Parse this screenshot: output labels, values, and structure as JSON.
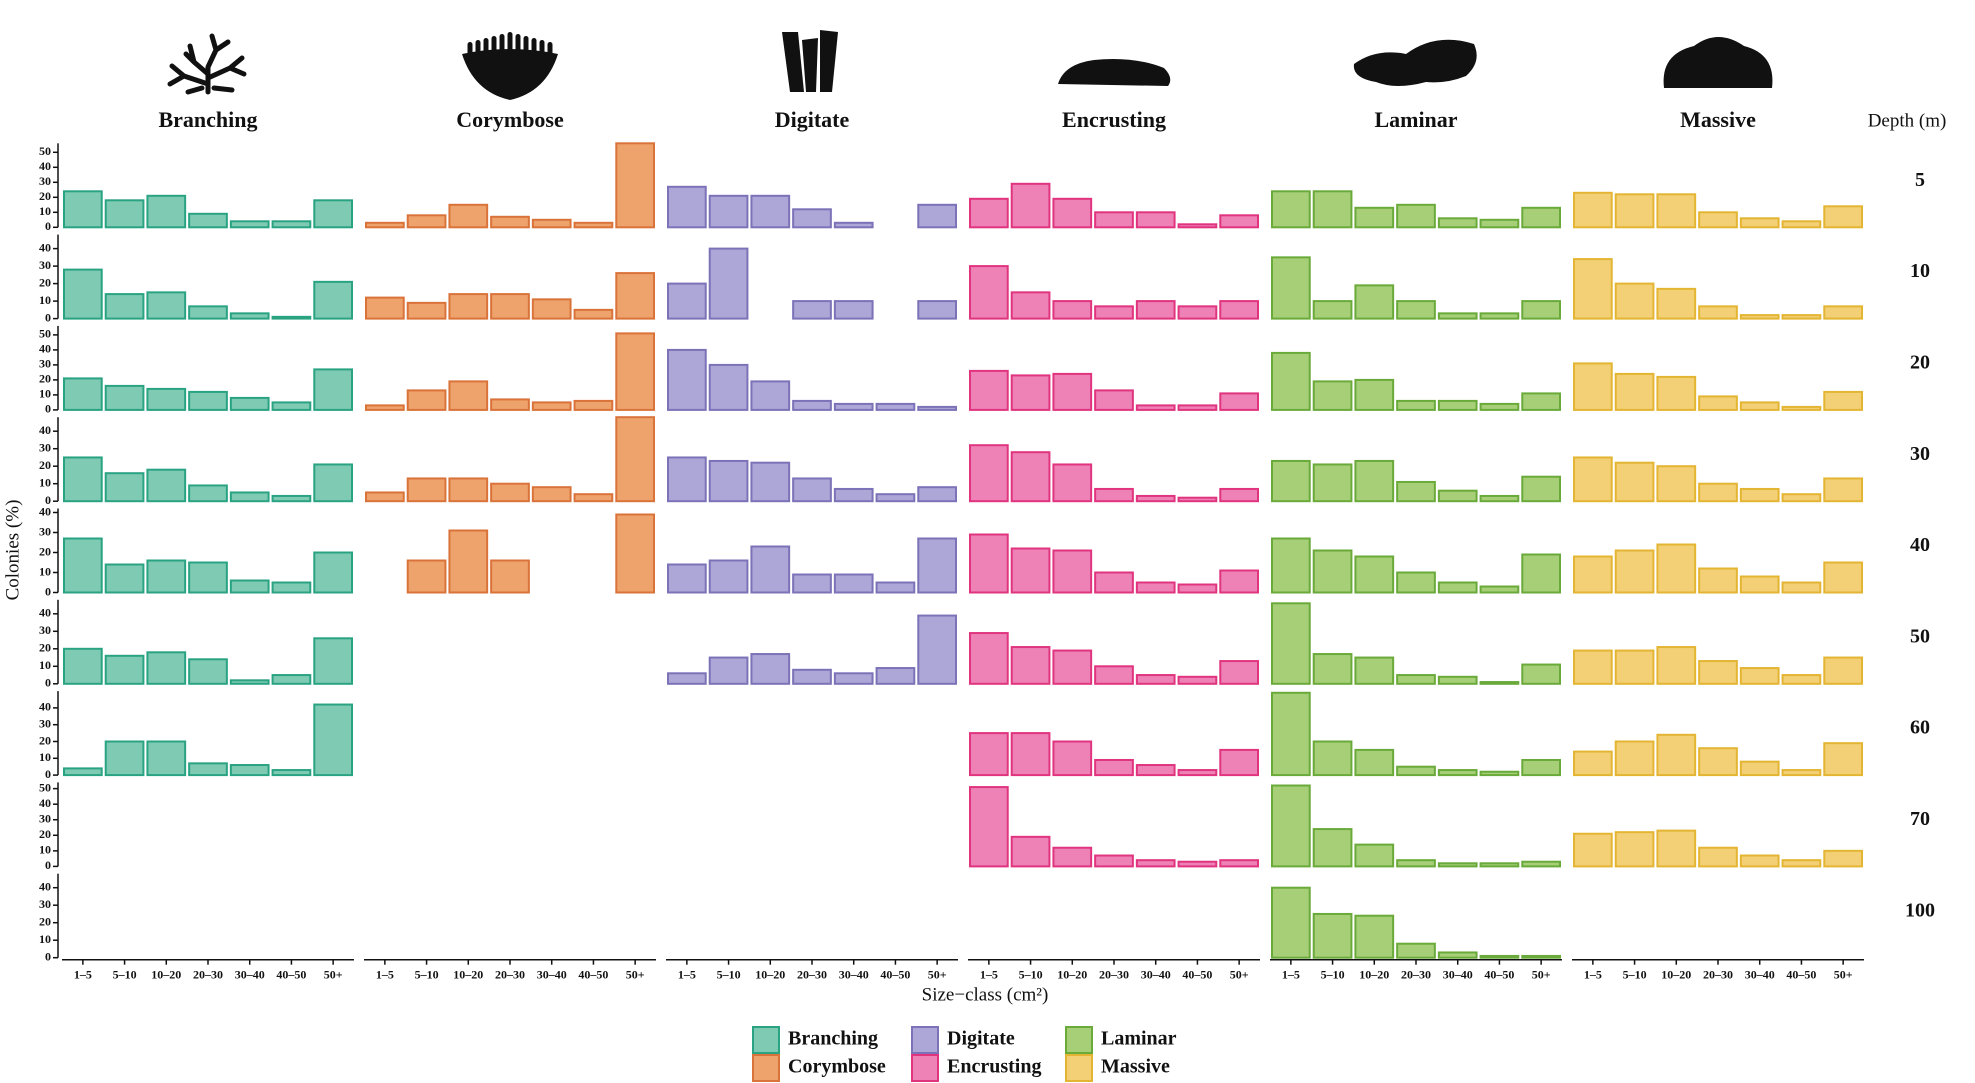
{
  "chart_data": {
    "type": "facet-bar",
    "x_label": "Size−class (cm²)",
    "y_label": "Colonies (%)",
    "row_title": "Depth (m)",
    "categories": [
      "1–5",
      "5–10",
      "10–20",
      "20–30",
      "30–40",
      "40–50",
      "50+"
    ],
    "columns": [
      {
        "name": "Branching",
        "color": "#7fcab3",
        "edgecolor": "#2aa383"
      },
      {
        "name": "Corymbose",
        "color": "#eea36d",
        "edgecolor": "#d9733a"
      },
      {
        "name": "Digitate",
        "color": "#aca7d6",
        "edgecolor": "#7b72b8"
      },
      {
        "name": "Encrusting",
        "color": "#ee82b6",
        "edgecolor": "#e0347f"
      },
      {
        "name": "Laminar",
        "color": "#a6cf78",
        "edgecolor": "#6aaa3a"
      },
      {
        "name": "Massive",
        "color": "#f3d076",
        "edgecolor": "#e3b533"
      }
    ],
    "rows": [
      {
        "depth": "5",
        "ylim": [
          0,
          56
        ],
        "yticks": [
          0,
          10,
          20,
          30,
          40,
          50
        ],
        "values": [
          [
            24,
            18,
            21,
            9,
            4,
            4,
            18
          ],
          [
            3,
            8,
            15,
            7,
            5,
            3,
            56
          ],
          [
            27,
            21,
            21,
            12,
            3,
            0,
            15
          ],
          [
            19,
            29,
            19,
            10,
            10,
            2,
            8
          ],
          [
            24,
            24,
            13,
            15,
            6,
            5,
            13
          ],
          [
            23,
            22,
            22,
            10,
            6,
            4,
            14
          ]
        ]
      },
      {
        "depth": "10",
        "ylim": [
          0,
          48
        ],
        "yticks": [
          0,
          10,
          20,
          30,
          40
        ],
        "values": [
          [
            28,
            14,
            15,
            7,
            3,
            1,
            21
          ],
          [
            12,
            9,
            14,
            14,
            11,
            5,
            26
          ],
          [
            20,
            40,
            0,
            10,
            10,
            0,
            10
          ],
          [
            30,
            15,
            10,
            7,
            10,
            7,
            10
          ],
          [
            35,
            10,
            19,
            10,
            3,
            3,
            10
          ],
          [
            34,
            20,
            17,
            7,
            2,
            2,
            7
          ]
        ]
      },
      {
        "depth": "20",
        "ylim": [
          0,
          56
        ],
        "yticks": [
          0,
          10,
          20,
          30,
          40,
          50
        ],
        "values": [
          [
            21,
            16,
            14,
            12,
            8,
            5,
            27
          ],
          [
            3,
            13,
            19,
            7,
            5,
            6,
            51
          ],
          [
            40,
            30,
            19,
            6,
            4,
            4,
            2
          ],
          [
            26,
            23,
            24,
            13,
            3,
            3,
            11
          ],
          [
            38,
            19,
            20,
            6,
            6,
            4,
            11
          ],
          [
            31,
            24,
            22,
            9,
            5,
            2,
            12
          ]
        ]
      },
      {
        "depth": "30",
        "ylim": [
          0,
          48
        ],
        "yticks": [
          0,
          10,
          20,
          30,
          40
        ],
        "values": [
          [
            25,
            16,
            18,
            9,
            5,
            3,
            21
          ],
          [
            5,
            13,
            13,
            10,
            8,
            4,
            48
          ],
          [
            25,
            23,
            22,
            13,
            7,
            4,
            8
          ],
          [
            32,
            28,
            21,
            7,
            3,
            2,
            7
          ],
          [
            23,
            21,
            23,
            11,
            6,
            3,
            14
          ],
          [
            25,
            22,
            20,
            10,
            7,
            4,
            13
          ]
        ]
      },
      {
        "depth": "40",
        "ylim": [
          0,
          42
        ],
        "yticks": [
          0,
          10,
          20,
          30,
          40
        ],
        "values": [
          [
            27,
            14,
            16,
            15,
            6,
            5,
            20
          ],
          [
            0,
            16,
            31,
            16,
            0,
            0,
            39
          ],
          [
            14,
            16,
            23,
            9,
            9,
            5,
            27
          ],
          [
            29,
            22,
            21,
            10,
            5,
            4,
            11
          ],
          [
            27,
            21,
            18,
            10,
            5,
            3,
            19
          ],
          [
            18,
            21,
            24,
            12,
            8,
            5,
            15
          ]
        ]
      },
      {
        "depth": "50",
        "ylim": [
          0,
          48
        ],
        "yticks": [
          0,
          10,
          20,
          30,
          40
        ],
        "values": [
          [
            20,
            16,
            18,
            14,
            2,
            5,
            26
          ],
          null,
          [
            6,
            15,
            17,
            8,
            6,
            9,
            39
          ],
          [
            29,
            21,
            19,
            10,
            5,
            4,
            13
          ],
          [
            46,
            17,
            15,
            5,
            4,
            1,
            11
          ],
          [
            19,
            19,
            21,
            13,
            9,
            5,
            15
          ]
        ]
      },
      {
        "depth": "60",
        "ylim": [
          0,
          50
        ],
        "yticks": [
          0,
          10,
          20,
          30,
          40
        ],
        "values": [
          [
            4,
            20,
            20,
            7,
            6,
            3,
            42
          ],
          null,
          null,
          [
            25,
            25,
            20,
            9,
            6,
            3,
            15
          ],
          [
            49,
            20,
            15,
            5,
            3,
            2,
            9
          ],
          [
            14,
            20,
            24,
            16,
            8,
            3,
            19
          ]
        ]
      },
      {
        "depth": "70",
        "ylim": [
          0,
          54
        ],
        "yticks": [
          0,
          10,
          20,
          30,
          40,
          50
        ],
        "values": [
          null,
          null,
          null,
          [
            51,
            19,
            12,
            7,
            4,
            3,
            4
          ],
          [
            52,
            24,
            14,
            4,
            2,
            2,
            3
          ],
          [
            21,
            22,
            23,
            12,
            7,
            4,
            10
          ]
        ]
      },
      {
        "depth": "100",
        "ylim": [
          0,
          48
        ],
        "yticks": [
          0,
          10,
          20,
          30,
          40
        ],
        "values": [
          null,
          null,
          null,
          null,
          [
            40,
            25,
            24,
            8,
            3,
            1,
            1
          ],
          null
        ]
      }
    ]
  }
}
